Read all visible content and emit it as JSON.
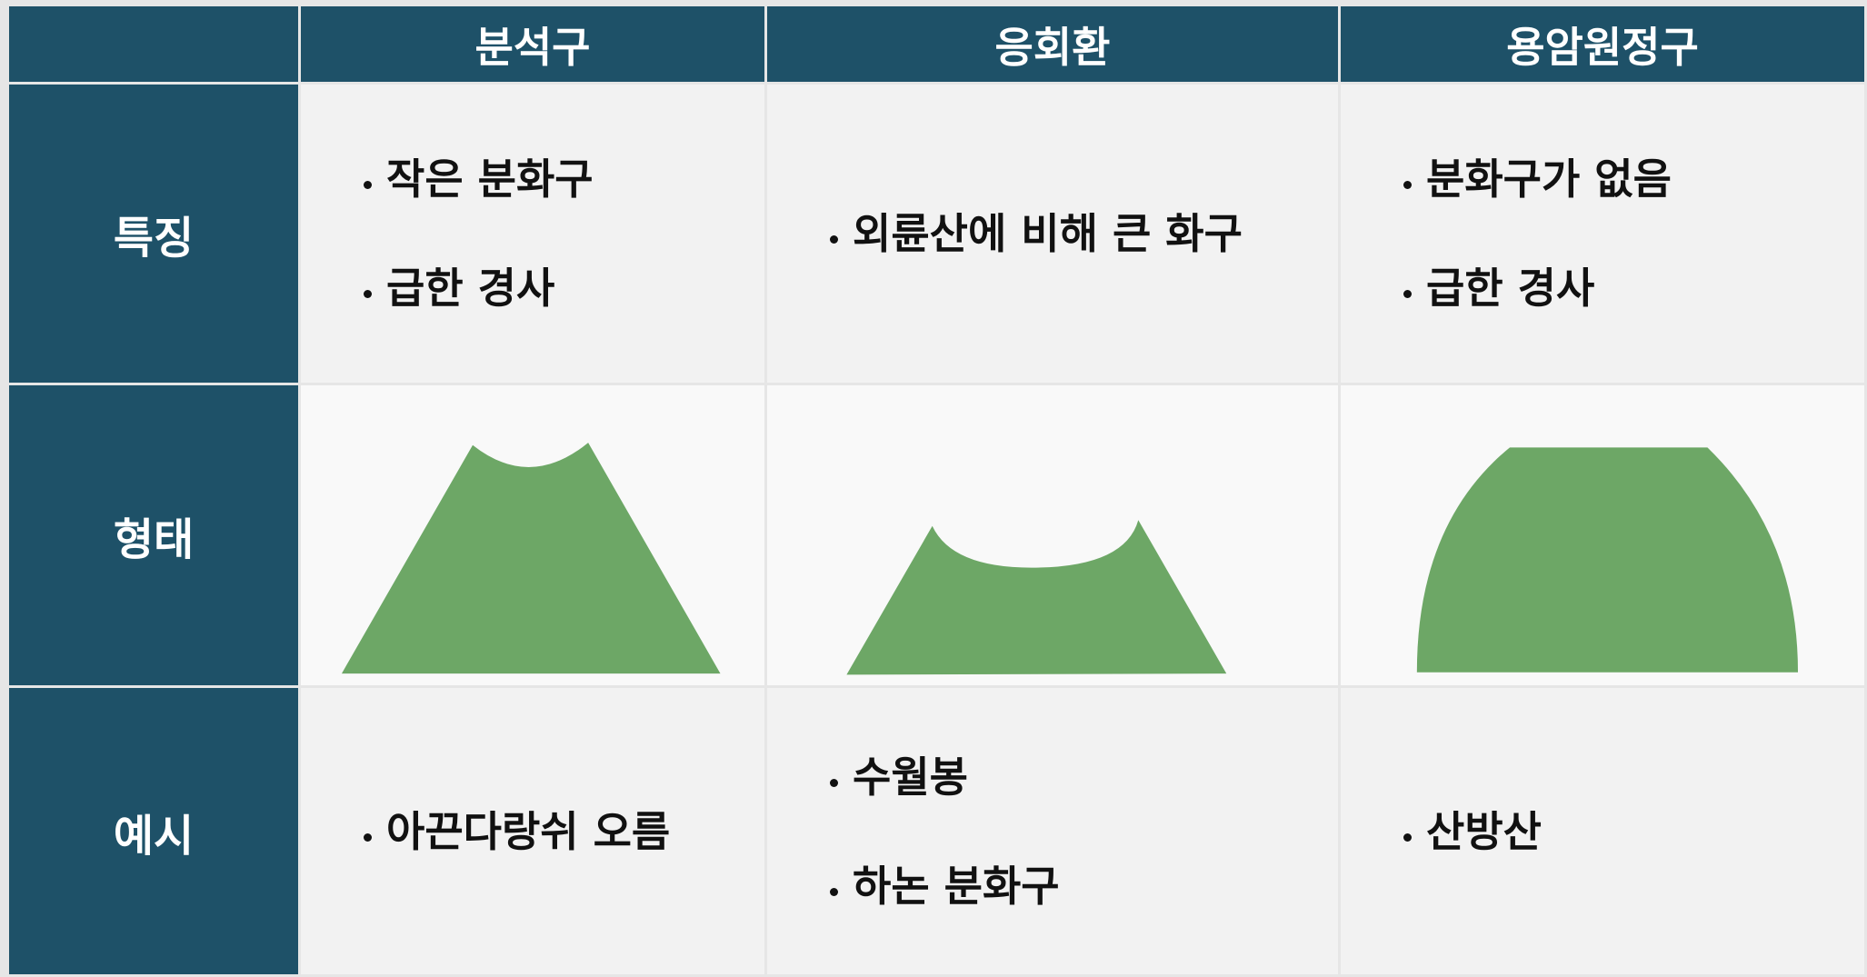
{
  "table": {
    "columns": [
      "분석구",
      "응회환",
      "용암원정구"
    ],
    "rows": [
      {
        "label": "특징",
        "cells": [
          [
            "작은 분화구",
            "급한 경사"
          ],
          [
            "외륜산에 비해 큰 화구"
          ],
          [
            "분화구가 없음",
            "급한 경사"
          ]
        ]
      },
      {
        "label": "형태",
        "cells": [
          [],
          [],
          []
        ]
      },
      {
        "label": "예시",
        "cells": [
          [
            "아끈다랑쉬 오름"
          ],
          [
            "수월봉",
            "하논 분화구"
          ],
          [
            "산방산"
          ]
        ]
      }
    ]
  }
}
